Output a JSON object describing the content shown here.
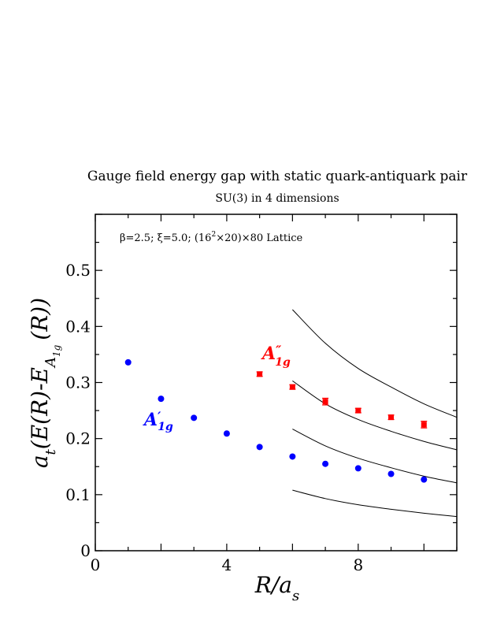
{
  "chart_data": {
    "type": "scatter",
    "title": "Gauge field energy gap with static quark-antiquark pair",
    "subtitle": "SU(3) in 4 dimensions",
    "annotation": {
      "pre": "β=2.5;  ξ=5.0; (16",
      "sup": "2",
      "mid": "×20)×80 Lattice"
    },
    "xlabel": {
      "main": "R/a",
      "sub": "s"
    },
    "ylabel": {
      "pre": "a",
      "sub_t": "t",
      "mid": "(E(R)-E",
      "sub_A": "A",
      "sub_1g": "1g",
      "post": "(R))"
    },
    "xlim": [
      0,
      11
    ],
    "ylim": [
      0,
      0.6
    ],
    "xticks": [
      0,
      4,
      8
    ],
    "xtick_labels": [
      "0",
      "4",
      "8"
    ],
    "yticks": [
      0,
      0.1,
      0.2,
      0.3,
      0.4,
      0.5
    ],
    "ytick_labels": [
      "0",
      "0.1",
      "0.2",
      "0.3",
      "0.4",
      "0.5"
    ],
    "grid": false,
    "series": [
      {
        "name": "A'1g",
        "label_main": "A",
        "label_prime": "′",
        "label_sub": "1g",
        "color": "#0000ff",
        "marker": "circle",
        "x": [
          1,
          2,
          3,
          4,
          5,
          6,
          7,
          8,
          9,
          10
        ],
        "y": [
          0.336,
          0.271,
          0.237,
          0.209,
          0.185,
          0.168,
          0.155,
          0.147,
          0.137,
          0.127
        ]
      },
      {
        "name": "A''1g",
        "label_main": "A",
        "label_prime": "″",
        "label_sub": "1g",
        "color": "#ff0000",
        "marker": "square",
        "x": [
          5,
          6,
          7,
          8,
          9,
          10
        ],
        "y": [
          0.315,
          0.292,
          0.266,
          0.25,
          0.238,
          0.225
        ],
        "yerr": [
          0.004,
          0.004,
          0.006,
          0.004,
          0.004,
          0.006
        ]
      }
    ],
    "curves": [
      {
        "x": [
          6,
          7,
          8,
          9,
          10,
          11
        ],
        "y": [
          0.43,
          0.37,
          0.325,
          0.292,
          0.262,
          0.238
        ]
      },
      {
        "x": [
          6,
          7,
          8,
          9,
          10,
          11
        ],
        "y": [
          0.303,
          0.262,
          0.234,
          0.213,
          0.195,
          0.18
        ]
      },
      {
        "x": [
          6,
          7,
          8,
          9,
          10,
          11
        ],
        "y": [
          0.217,
          0.187,
          0.165,
          0.148,
          0.133,
          0.121
        ]
      },
      {
        "x": [
          6,
          7,
          8,
          9,
          10,
          11
        ],
        "y": [
          0.108,
          0.093,
          0.082,
          0.074,
          0.067,
          0.061
        ]
      }
    ]
  }
}
